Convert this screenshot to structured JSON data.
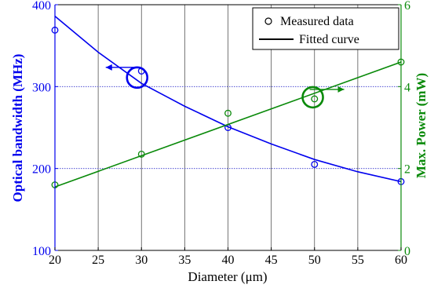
{
  "chart_data": {
    "type": "line",
    "xlabel": "Diameter (μm)",
    "ylabel_left": "Optical bandwidth (MHz)",
    "ylabel_right": "Max. Power (mW)",
    "xlim": [
      20,
      60
    ],
    "ylim_left": [
      100,
      400
    ],
    "ylim_right": [
      0,
      6
    ],
    "x_ticks": [
      20,
      25,
      30,
      35,
      40,
      45,
      50,
      55,
      60
    ],
    "y_left_ticks": [
      100,
      200,
      300,
      400
    ],
    "y_right_ticks": [
      0,
      2,
      4,
      6
    ],
    "grid": "vertical solid at x ticks; horizontal dotted at left-axis ticks",
    "legend": {
      "placement": "top-right",
      "entries": [
        {
          "label": "Measured data",
          "marker": "circle"
        },
        {
          "label": "Fitted curve",
          "marker": "line"
        }
      ]
    },
    "series": [
      {
        "axis": "left",
        "color": "#0000ee",
        "measured": {
          "x": [
            20,
            30,
            40,
            50,
            60
          ],
          "y": [
            369,
            319,
            250,
            205,
            184
          ]
        },
        "fitted": {
          "x": [
            20,
            25,
            30,
            35,
            40,
            45,
            50,
            55,
            60
          ],
          "y": [
            386,
            342,
            304,
            276,
            251,
            230,
            211,
            196,
            184
          ]
        }
      },
      {
        "axis": "right",
        "color": "#0a8a0a",
        "measured": {
          "x": [
            20,
            30,
            40,
            50,
            60
          ],
          "y": [
            1.6,
            2.35,
            3.35,
            3.7,
            4.6
          ]
        },
        "fitted": {
          "x": [
            20,
            60
          ],
          "y": [
            1.55,
            4.6
          ]
        }
      }
    ],
    "annotations": [
      {
        "type": "axis-indicator",
        "series": 0,
        "direction": "left",
        "at": [
          29.5,
          311
        ]
      },
      {
        "type": "axis-indicator",
        "series": 1,
        "direction": "right",
        "at": [
          49.8,
          287
        ]
      }
    ]
  }
}
